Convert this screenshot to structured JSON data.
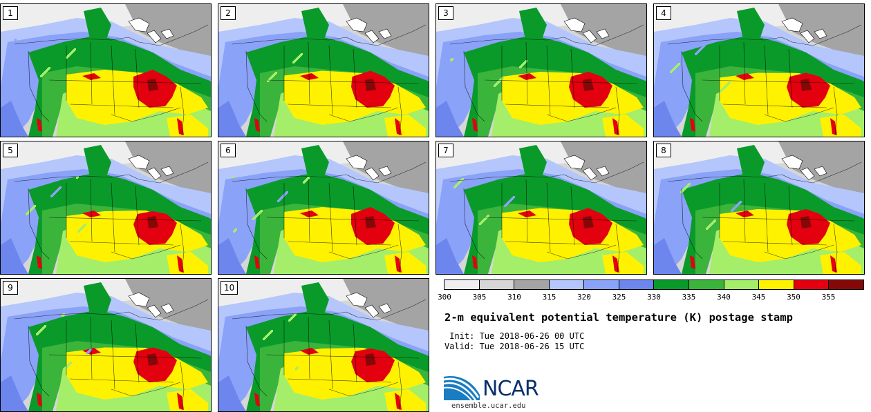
{
  "panels": [
    {
      "label": "1"
    },
    {
      "label": "2"
    },
    {
      "label": "3"
    },
    {
      "label": "4"
    },
    {
      "label": "5"
    },
    {
      "label": "6"
    },
    {
      "label": "7"
    },
    {
      "label": "8"
    },
    {
      "label": "9"
    },
    {
      "label": "10"
    }
  ],
  "colorbar": {
    "colors": [
      "#eeeeee",
      "#d6d6d6",
      "#a4a4a4",
      "#b4c6fb",
      "#8aa2f7",
      "#6d86ee",
      "#0a9a2a",
      "#3bb43b",
      "#a4ee6a",
      "#fff200",
      "#e3000f",
      "#850808"
    ],
    "ticks": [
      "300",
      "305",
      "310",
      "315",
      "320",
      "325",
      "330",
      "335",
      "340",
      "345",
      "350",
      "355"
    ]
  },
  "title": "2-m equivalent potential temperature (K) postage stamp",
  "init": " Init: Tue 2018-06-26 00 UTC",
  "valid": "Valid: Tue 2018-06-26 15 UTC",
  "logo": {
    "name": "NCAR",
    "url": "ensemble.ucar.edu"
  }
}
